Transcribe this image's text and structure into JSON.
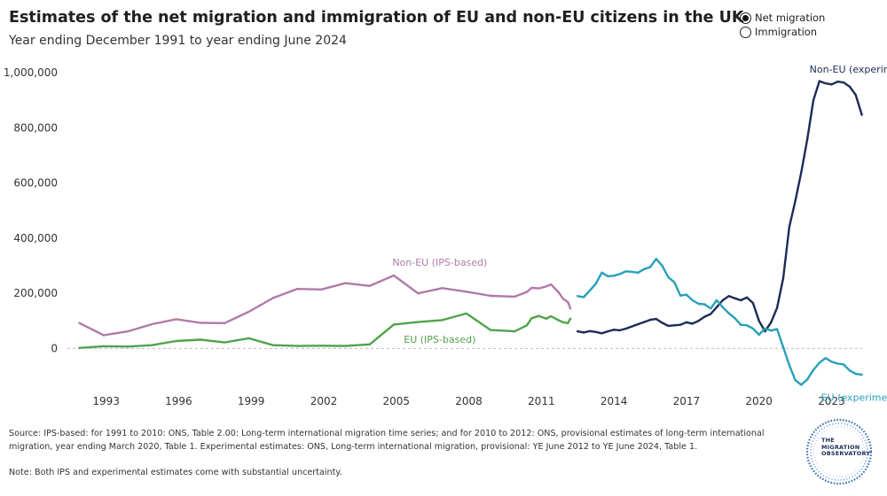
{
  "title": "Estimates of the net migration and immigration of EU and non-EU citizens in the UK",
  "subtitle": "Year ending December 1991 to year ending June 2024",
  "toggle": {
    "options": [
      {
        "label": "Net migration",
        "selected": true
      },
      {
        "label": "Immigration",
        "selected": false
      }
    ]
  },
  "chart_data": {
    "type": "line",
    "ylim": [
      -140000,
      1020000
    ],
    "xlim": [
      1991.4,
      2025.0
    ],
    "y_ticks": [
      0,
      200000,
      400000,
      600000,
      800000,
      1000000
    ],
    "y_tick_labels": [
      "0",
      "200,000",
      "400,000",
      "600,000",
      "800,000",
      "1,000,000"
    ],
    "x_ticks": [
      1993,
      1996,
      1999,
      2002,
      2005,
      2008,
      2011,
      2014,
      2017,
      2020,
      2023
    ],
    "x_tick_labels": [
      "1993",
      "1996",
      "1999",
      "2002",
      "2005",
      "2008",
      "2011",
      "2014",
      "2017",
      "2020",
      "2023"
    ],
    "series": [
      {
        "name": "Non-EU (IPS-based)",
        "color": "#b07aa8",
        "x": [
          1991.9,
          1992.9,
          1993.9,
          1994.9,
          1995.9,
          1996.9,
          1997.9,
          1998.9,
          1999.9,
          2000.9,
          2001.9,
          2002.9,
          2003.9,
          2004.9,
          2005.9,
          2006.9,
          2007.9,
          2008.9,
          2009.9,
          2010.4,
          2010.6,
          2010.9,
          2011.2,
          2011.4,
          2011.7,
          2011.9,
          2012.1,
          2012.2
        ],
        "values": [
          92000,
          48000,
          62000,
          88000,
          106000,
          93000,
          92000,
          133000,
          183000,
          216000,
          214000,
          237000,
          227000,
          265000,
          200000,
          219000,
          206000,
          191000,
          188000,
          205000,
          220000,
          218000,
          225000,
          232000,
          205000,
          180000,
          168000,
          145000
        ]
      },
      {
        "name": "EU (IPS-based)",
        "color": "#52a24c",
        "x": [
          1991.9,
          1992.9,
          1993.9,
          1994.9,
          1995.9,
          1996.9,
          1997.9,
          1998.9,
          1999.9,
          2000.9,
          2001.9,
          2002.9,
          2003.9,
          2004.9,
          2005.9,
          2006.9,
          2007.9,
          2008.9,
          2009.9,
          2010.4,
          2010.6,
          2010.9,
          2011.2,
          2011.4,
          2011.7,
          2011.9,
          2012.1,
          2012.2
        ],
        "values": [
          2000,
          8000,
          7000,
          12000,
          27000,
          32000,
          22000,
          37000,
          12000,
          9000,
          10000,
          9000,
          15000,
          87000,
          96000,
          103000,
          127000,
          67000,
          62000,
          84000,
          110000,
          118000,
          108000,
          117000,
          103000,
          95000,
          92000,
          108000
        ]
      },
      {
        "name": "Non-EU (experimental)",
        "color": "#1d2b57",
        "x": [
          2012.5,
          2012.75,
          2013.0,
          2013.25,
          2013.5,
          2013.75,
          2014.0,
          2014.25,
          2014.5,
          2014.75,
          2015.0,
          2015.25,
          2015.5,
          2015.75,
          2016.0,
          2016.25,
          2016.5,
          2016.75,
          2017.0,
          2017.25,
          2017.5,
          2017.75,
          2018.0,
          2018.25,
          2018.5,
          2018.75,
          2019.0,
          2019.25,
          2019.5,
          2019.75,
          2020.0,
          2020.25,
          2020.5,
          2020.75,
          2021.0,
          2021.25,
          2021.5,
          2021.75,
          2022.0,
          2022.25,
          2022.5,
          2022.75,
          2023.0,
          2023.25,
          2023.5,
          2023.75,
          2024.0,
          2024.25
        ],
        "values": [
          62000,
          58000,
          63000,
          60000,
          55000,
          62000,
          68000,
          66000,
          72000,
          80000,
          88000,
          96000,
          104000,
          107000,
          93000,
          82000,
          84000,
          86000,
          95000,
          90000,
          100000,
          115000,
          125000,
          150000,
          175000,
          190000,
          182000,
          175000,
          185000,
          165000,
          100000,
          62000,
          95000,
          148000,
          255000,
          440000,
          535000,
          640000,
          760000,
          900000,
          970000,
          962000,
          958000,
          968000,
          965000,
          950000,
          920000,
          848000
        ]
      },
      {
        "name": "EU (experimental)",
        "color": "#27a0b8",
        "x": [
          2012.5,
          2012.75,
          2013.0,
          2013.25,
          2013.5,
          2013.75,
          2014.0,
          2014.25,
          2014.5,
          2014.75,
          2015.0,
          2015.25,
          2015.5,
          2015.75,
          2016.0,
          2016.25,
          2016.5,
          2016.75,
          2017.0,
          2017.25,
          2017.5,
          2017.75,
          2018.0,
          2018.25,
          2018.5,
          2018.75,
          2019.0,
          2019.25,
          2019.5,
          2019.75,
          2020.0,
          2020.25,
          2020.5,
          2020.75,
          2021.0,
          2021.25,
          2021.5,
          2021.75,
          2022.0,
          2022.25,
          2022.5,
          2022.75,
          2023.0,
          2023.25,
          2023.5,
          2023.75,
          2024.0,
          2024.25
        ],
        "values": [
          190000,
          186000,
          210000,
          235000,
          275000,
          262000,
          264000,
          270000,
          280000,
          278000,
          275000,
          288000,
          295000,
          325000,
          300000,
          258000,
          240000,
          192000,
          195000,
          175000,
          162000,
          160000,
          145000,
          175000,
          150000,
          128000,
          110000,
          86000,
          84000,
          72000,
          50000,
          72000,
          65000,
          70000,
          5000,
          -60000,
          -115000,
          -132000,
          -112000,
          -78000,
          -52000,
          -35000,
          -48000,
          -55000,
          -58000,
          -80000,
          -92000,
          -95000
        ]
      }
    ],
    "annotations": [
      {
        "text": "Non-EU (IPS-based)",
        "color": "#b07aa8",
        "x": 2006.8,
        "y": 300000,
        "anchor": "middle"
      },
      {
        "text": "EU (IPS-based)",
        "color": "#52a24c",
        "x": 2006.8,
        "y": 20000,
        "anchor": "middle"
      },
      {
        "text": "Non-EU (experimental)",
        "color": "#1d2b57",
        "x": 2024.4,
        "y": 1000000,
        "anchor": "middle"
      },
      {
        "text": "EU (experimental)",
        "color": "#27a0b8",
        "x": 2024.4,
        "y": -190000,
        "anchor": "middle"
      }
    ]
  },
  "source_text": "Source: IPS-based: for 1991 to 2010: ONS, Table 2.00: Long-term international migration time series; and for 2010 to 2012: ONS, provisional estimates of long-term international migration, year ending March 2020, Table 1. Experimental estimates: ONS, Long-term international migration, provisional: YE June 2012 to YE June 2024, Table 1.",
  "note_text": "Note: Both IPS and experimental estimates come with substantial uncertainty.",
  "logo": {
    "line1": "THE",
    "line2": "MIGRATION",
    "line3": "OBSERVATORY"
  }
}
